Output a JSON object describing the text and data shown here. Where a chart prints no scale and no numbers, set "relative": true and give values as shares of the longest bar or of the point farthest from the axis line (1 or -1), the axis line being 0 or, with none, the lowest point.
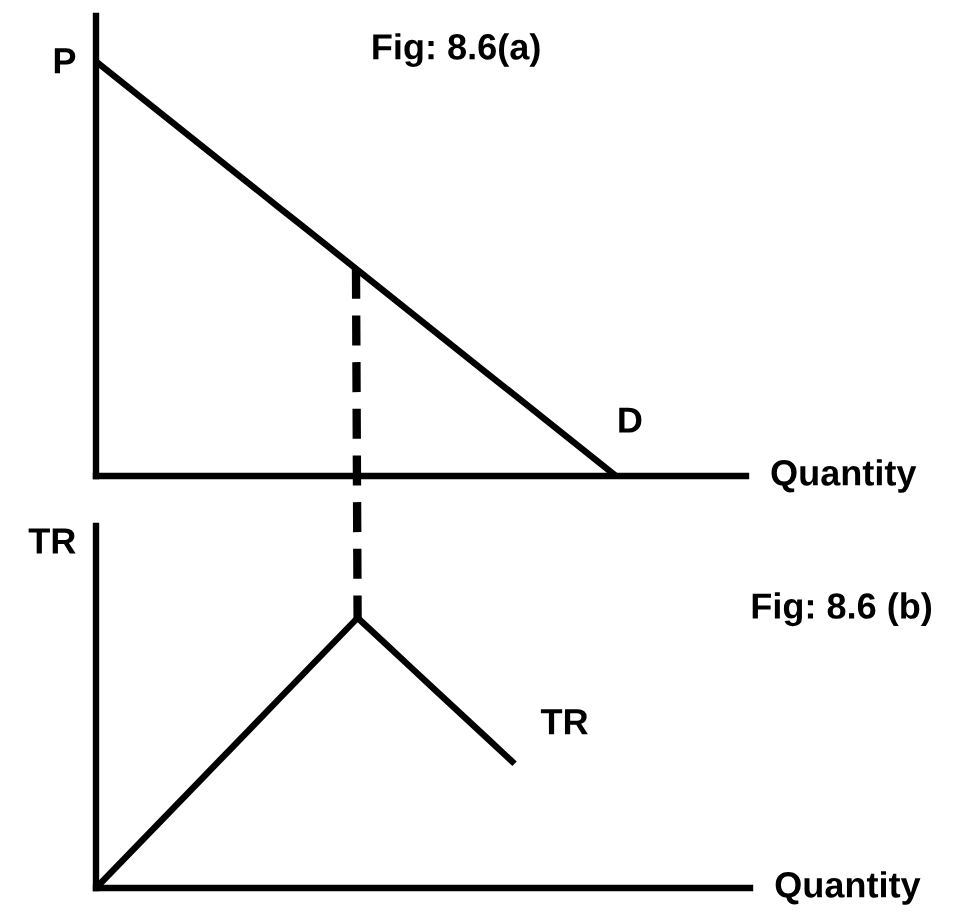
{
  "chart_data": [
    {
      "type": "line",
      "title": "Fig: 8.6(a)",
      "xlabel": "Quantity",
      "ylabel": "P",
      "relative": true,
      "categories": [
        null,
        null,
        null,
        null,
        null,
        null,
        null,
        null,
        null,
        null,
        null,
        null,
        null,
        null,
        null,
        null,
        null,
        null,
        null,
        null,
        null,
        null,
        null,
        null,
        null,
        null
      ],
      "series": [
        {
          "name": "D",
          "color": "#000000",
          "values": [
            1,
            0.95,
            0.9,
            0.85,
            0.8,
            0.75,
            0.7,
            0.65,
            0.6,
            0.55,
            0.5,
            0.45,
            0.4,
            0.35,
            0.3,
            0.25,
            0.2,
            0.15,
            0.1,
            0.05,
            0,
            null,
            null,
            null,
            null,
            null
          ]
        }
      ]
    },
    {
      "type": "line",
      "title": "Fig: 8.6 (b)",
      "xlabel": "Quantity",
      "ylabel": "TR",
      "relative": true,
      "categories": [
        null,
        null,
        null,
        null,
        null,
        null,
        null,
        null,
        null,
        null,
        null,
        null,
        null,
        null,
        null,
        null,
        null,
        null,
        null,
        null,
        null,
        null,
        null,
        null,
        null,
        null
      ],
      "series": [
        {
          "name": "TR",
          "color": "#000000",
          "values": [
            0,
            0.1,
            0.2,
            0.3,
            0.4,
            0.5,
            0.6,
            0.7,
            0.8,
            0.9,
            1,
            0.91,
            0.82,
            0.73,
            0.64,
            0.55,
            0.46,
            null,
            null,
            null,
            null,
            null,
            null,
            null,
            null,
            null
          ]
        }
      ]
    }
  ]
}
